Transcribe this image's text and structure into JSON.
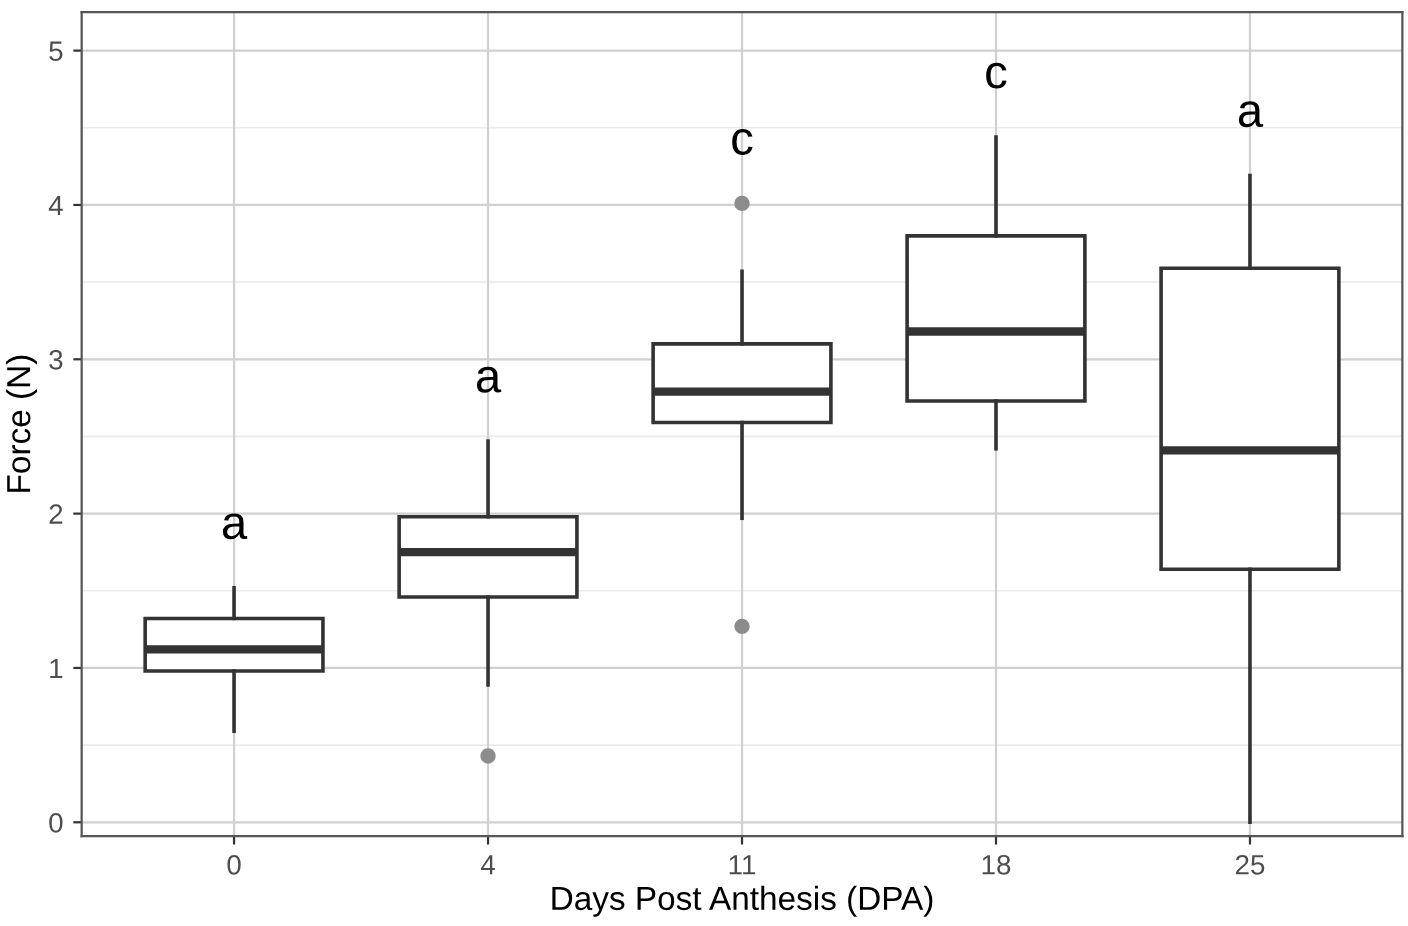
{
  "chart_data": {
    "type": "box",
    "xlabel": "Days Post Anthesis (DPA)",
    "ylabel": "Force (N)",
    "categories": [
      "0",
      "4",
      "11",
      "18",
      "25"
    ],
    "boxes": [
      {
        "low": 0.59,
        "q1": 0.98,
        "median": 1.12,
        "q3": 1.32,
        "high": 1.52
      },
      {
        "low": 0.89,
        "q1": 1.46,
        "median": 1.75,
        "q3": 1.98,
        "high": 2.47,
        "outliers": [
          0.43
        ]
      },
      {
        "low": 1.97,
        "q1": 2.59,
        "median": 2.79,
        "q3": 3.1,
        "high": 3.57,
        "outliers": [
          4.01,
          1.27
        ]
      },
      {
        "low": 2.42,
        "q1": 2.73,
        "median": 3.18,
        "q3": 3.8,
        "high": 4.44
      },
      {
        "low": 0.0,
        "q1": 1.64,
        "median": 2.41,
        "q3": 3.59,
        "high": 4.19
      }
    ],
    "color": "#333333",
    "annotations": [
      "a",
      "a",
      "c",
      "c",
      "a"
    ],
    "ylim": [
      -0.09,
      5.25
    ],
    "yticks": [
      0,
      1,
      2,
      3,
      4,
      5
    ],
    "grid": true
  }
}
